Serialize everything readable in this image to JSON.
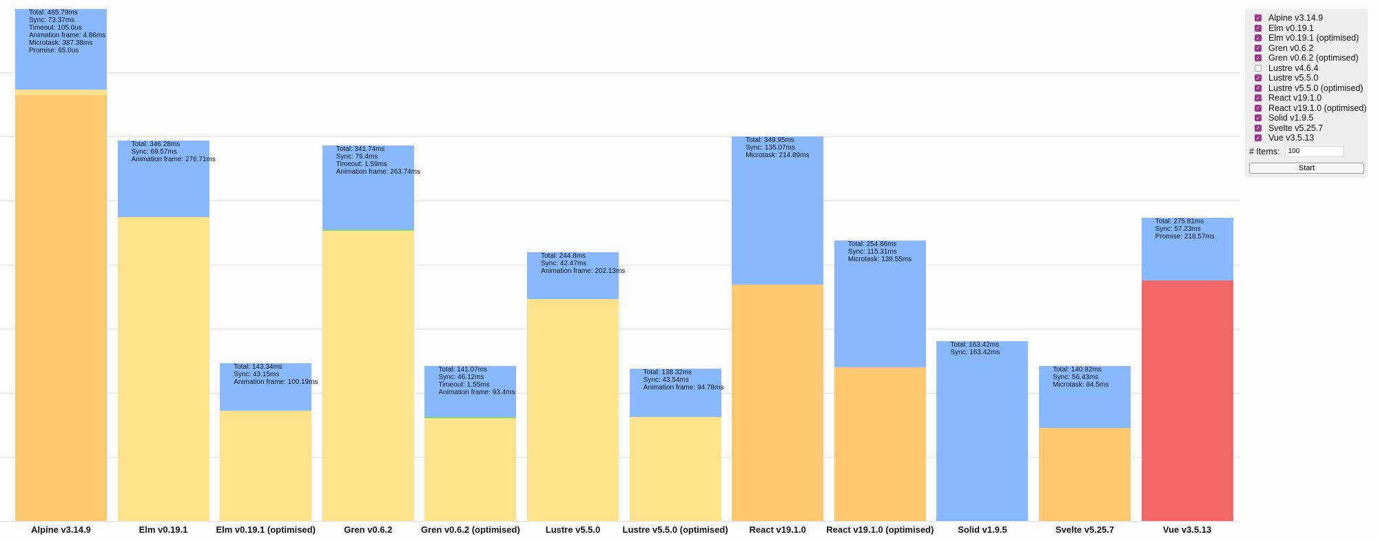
{
  "chart_data": {
    "type": "bar",
    "stacked": true,
    "ylim": [
      0,
      470
    ],
    "unit": "ms",
    "colors": {
      "promise": "#f46767",
      "microtask": "#fec770",
      "animation_frame": "#fee28c",
      "timeout": "#8cd57c",
      "sync": "#88b9fe"
    },
    "stack_order": [
      "promise",
      "microtask",
      "animation_frame",
      "timeout",
      "sync"
    ],
    "categories": [
      "Alpine v3.14.9",
      "Elm v0.19.1",
      "Elm v0.19.1 (optimised)",
      "Gren v0.6.2",
      "Gren v0.6.2 (optimised)",
      "Lustre v5.5.0",
      "Lustre v5.5.0 (optimised)",
      "React v19.1.0",
      "React v19.1.0 (optimised)",
      "Solid v1.9.5",
      "Svelte v5.25.7",
      "Vue v3.5.13"
    ],
    "bars": [
      {
        "total": 465.79,
        "segments": {
          "sync": 73.37,
          "timeout": 0.105,
          "animation_frame": 4.86,
          "microtask": 387.38,
          "promise": 0.065
        },
        "lines": [
          "Total: 465.79ms",
          "Sync: 73.37ms",
          "Timeout: 105.0us",
          "Animation frame: 4.86ms",
          "Microtask: 387.38ms",
          "Promise: 65.0us"
        ]
      },
      {
        "total": 346.28,
        "segments": {
          "sync": 69.57,
          "animation_frame": 276.71
        },
        "lines": [
          "Total: 346.28ms",
          "Sync: 69.57ms",
          "Animation frame: 276.71ms"
        ]
      },
      {
        "total": 143.34,
        "segments": {
          "sync": 43.15,
          "animation_frame": 100.19
        },
        "lines": [
          "Total: 143.34ms",
          "Sync: 43.15ms",
          "Animation frame: 100.19ms"
        ]
      },
      {
        "total": 341.74,
        "segments": {
          "sync": 76.4,
          "timeout": 1.59,
          "animation_frame": 263.74
        },
        "lines": [
          "Total: 341.74ms",
          "Sync: 76.4ms",
          "Timeout: 1.59ms",
          "Animation frame: 263.74ms"
        ]
      },
      {
        "total": 141.07,
        "segments": {
          "sync": 46.12,
          "timeout": 1.55,
          "animation_frame": 93.4
        },
        "lines": [
          "Total: 141.07ms",
          "Sync: 46.12ms",
          "Timeout: 1.55ms",
          "Animation frame: 93.4ms"
        ]
      },
      {
        "total": 244.8,
        "segments": {
          "sync": 42.47,
          "animation_frame": 202.13
        },
        "lines": [
          "Total: 244.8ms",
          "Sync: 42.47ms",
          "Animation frame: 202.13ms"
        ]
      },
      {
        "total": 138.32,
        "segments": {
          "sync": 43.54,
          "animation_frame": 94.78
        },
        "lines": [
          "Total: 138.32ms",
          "Sync: 43.54ms",
          "Animation frame: 94.78ms"
        ]
      },
      {
        "total": 349.95,
        "segments": {
          "sync": 135.07,
          "microtask": 214.89
        },
        "lines": [
          "Total: 349.95ms",
          "Sync: 135.07ms",
          "Microtask: 214.89ms"
        ]
      },
      {
        "total": 254.86,
        "segments": {
          "sync": 115.31,
          "microtask": 139.55
        },
        "lines": [
          "Total: 254.86ms",
          "Sync: 115.31ms",
          "Microtask: 139.55ms"
        ]
      },
      {
        "total": 163.42,
        "segments": {
          "sync": 163.42
        },
        "lines": [
          "Total: 163.42ms",
          "Sync: 163.42ms"
        ]
      },
      {
        "total": 140.92,
        "segments": {
          "sync": 56.43,
          "microtask": 84.5
        },
        "lines": [
          "Total: 140.92ms",
          "Sync: 56.43ms",
          "Microtask: 84.5ms"
        ]
      },
      {
        "total": 275.81,
        "segments": {
          "sync": 57.23,
          "promise": 218.57
        },
        "lines": [
          "Total: 275.81ms",
          "Sync: 57.23ms",
          "Promise: 218.57ms"
        ]
      }
    ]
  },
  "panel": {
    "options": [
      {
        "label": "Alpine v3.14.9",
        "checked": true
      },
      {
        "label": "Elm v0.19.1",
        "checked": true
      },
      {
        "label": "Elm v0.19.1 (optimised)",
        "checked": true
      },
      {
        "label": "Gren v0.6.2",
        "checked": true
      },
      {
        "label": "Gren v0.6.2 (optimised)",
        "checked": true
      },
      {
        "label": "Lustre v4.6.4",
        "checked": false
      },
      {
        "label": "Lustre v5.5.0",
        "checked": true
      },
      {
        "label": "Lustre v5.5.0 (optimised)",
        "checked": true
      },
      {
        "label": "React v19.1.0",
        "checked": true
      },
      {
        "label": "React v19.1.0 (optimised)",
        "checked": true
      },
      {
        "label": "Solid v1.9.5",
        "checked": true
      },
      {
        "label": "Svelte v5.25.7",
        "checked": true
      },
      {
        "label": "Vue v3.5.13",
        "checked": true
      }
    ],
    "items_label": "# Items:",
    "items_value": "100",
    "start_label": "Start"
  }
}
